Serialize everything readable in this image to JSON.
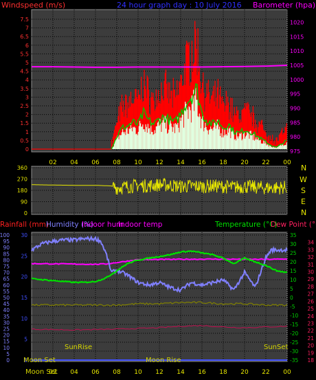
{
  "header": {
    "windspeed_label": "Windspeed (m/s)",
    "title": "24 hour graph day : 10 July 2016",
    "barometer_label": "Barometer (hpa)"
  },
  "legend_bottom": {
    "rainfall": "Rainfall (mm)",
    "humidity": "Humidity (%)",
    "indoor_hum": "Indoor hum",
    "indoor_temp": "Indoor temp",
    "temperature": "Temperature (°C)",
    "dew_point": "Dew Point (°C)"
  },
  "compass": [
    "N",
    "W",
    "S",
    "E",
    "N"
  ],
  "events": {
    "sunrise": "SunRise",
    "sunset": "SunSet",
    "moonset_left": "Moon Set",
    "moonset_axis": "Moon Set",
    "moonrise": "Moon Rise"
  },
  "colors": {
    "wind_gust": "#ff0000",
    "wind_avg": "#00c800",
    "wind_fill": "#e0ffe0",
    "barometer": "#ff00ff",
    "direction": "#e6e600",
    "humidity": "#8080ff",
    "temperature": "#00e000",
    "indoor_temp": "#ff00ff",
    "indoor_hum": "#808000",
    "dew_point": "#c01050",
    "rainfall": "#4050ff",
    "title": "#3030ff",
    "wind_axis": "#ff3030",
    "baro_axis": "#ff00ff",
    "axis_hum": "#8080ff",
    "axis_temp": "#00d000",
    "axis_dew": "#ff2060"
  },
  "chart_data": [
    {
      "type": "line",
      "name": "wind-barometer",
      "x_ticks": [
        "02",
        "04",
        "06",
        "08",
        "10",
        "12",
        "14",
        "16",
        "18",
        "20",
        "22",
        "00"
      ],
      "y_left_ticks": [
        "0",
        "0.5",
        "1",
        "1.5",
        "2",
        "2.5",
        "3",
        "3.5",
        "4",
        "4.5",
        "5",
        "5.5",
        "6",
        "6.5",
        "7",
        "7.5"
      ],
      "y_right_ticks": [
        "975",
        "980",
        "985",
        "990",
        "995",
        "1000",
        "1005",
        "1010",
        "1015",
        "1020"
      ],
      "ylim_left": [
        0,
        7.5
      ],
      "ylim_right": [
        975,
        1023
      ],
      "xlim": [
        0,
        24
      ],
      "grid": true,
      "series": [
        {
          "name": "Barometer (hpa)",
          "x": [
            0,
            2,
            4,
            6,
            8,
            10,
            12,
            14,
            16,
            18,
            20,
            22,
            24
          ],
          "values": [
            1004.5,
            1004.5,
            1004.4,
            1004.3,
            1004.3,
            1004.4,
            1004.4,
            1004.4,
            1004.4,
            1004.5,
            1004.6,
            1004.7,
            1005.0
          ]
        },
        {
          "name": "Windspeed (m/s)",
          "x": [
            7.5,
            8,
            8.5,
            9,
            9.5,
            10,
            10.5,
            11,
            11.5,
            12,
            12.5,
            13,
            13.5,
            14,
            14.5,
            15,
            15.5,
            16,
            16.5,
            17,
            17.5,
            18,
            18.5,
            19,
            19.5,
            20,
            20.5,
            21,
            21.5,
            22,
            22.5,
            23,
            23.5,
            24
          ],
          "values": [
            0,
            0.7,
            1.2,
            1.3,
            1.5,
            1.4,
            2.0,
            1.6,
            1.4,
            1.7,
            1.8,
            1.6,
            1.5,
            2.0,
            2.6,
            3.0,
            3.4,
            2.0,
            1.6,
            1.4,
            1.6,
            1.2,
            1.4,
            1.0,
            0.9,
            1.1,
            1.0,
            0.8,
            0.6,
            0.4,
            0.2,
            0.1,
            0.3,
            0.5
          ]
        }
      ]
    },
    {
      "type": "scatter",
      "name": "wind-direction",
      "y_ticks": [
        "360",
        "270",
        "180",
        "90",
        "0"
      ],
      "ylim": [
        0,
        360
      ],
      "xlim": [
        0,
        24
      ],
      "series": [
        {
          "name": "Direction",
          "x": [
            0,
            2,
            4,
            6,
            7.5,
            8,
            9,
            10,
            11,
            12,
            13,
            14,
            15,
            16,
            17,
            18,
            19,
            20,
            21,
            22,
            23,
            24
          ],
          "values": [
            225,
            222,
            220,
            220,
            215,
            200,
            210,
            220,
            215,
            225,
            220,
            210,
            215,
            210,
            215,
            210,
            205,
            210,
            205,
            200,
            200,
            205
          ]
        }
      ]
    },
    {
      "type": "line",
      "name": "temperature-humidity",
      "y_left_ticks": [
        "0",
        "5",
        "10",
        "15",
        "20",
        "25",
        "30",
        "35",
        "40",
        "45",
        "50",
        "55",
        "60",
        "65",
        "70",
        "75",
        "80",
        "85",
        "90",
        "95",
        "100"
      ],
      "y_right_ticks": [
        "-35",
        "-30",
        "-25",
        "-20",
        "-15",
        "-10",
        "-5",
        "0",
        "5",
        "10",
        "15",
        "20",
        "25",
        "30",
        "35"
      ],
      "y_far_right_ticks": [
        "18",
        "19",
        "20",
        "21",
        "22",
        "23",
        "24",
        "25",
        "26",
        "27",
        "28",
        "29",
        "30",
        "31",
        "32",
        "33",
        "34"
      ],
      "rain_ticks": [
        "0",
        "5",
        "10",
        "15",
        "20",
        "25",
        "30"
      ],
      "ylim_humidity": [
        0,
        100
      ],
      "ylim_temperature": [
        -35,
        35
      ],
      "ylim_dewpoint": [
        18,
        35
      ],
      "xlim": [
        0,
        24
      ],
      "series": [
        {
          "name": "Humidity (%)",
          "x": [
            0,
            1,
            2,
            3,
            4,
            5,
            6,
            6.5,
            7,
            7.5,
            8,
            9,
            10,
            11,
            12,
            13,
            14,
            15,
            16,
            17,
            18,
            19,
            20,
            21,
            22,
            22.5,
            23,
            24
          ],
          "values": [
            88,
            93,
            95,
            96,
            96,
            97,
            97,
            95,
            85,
            70,
            72,
            68,
            62,
            60,
            62,
            58,
            56,
            62,
            60,
            62,
            64,
            56,
            70,
            58,
            82,
            88,
            88,
            88
          ]
        },
        {
          "name": "Temperature (°C)",
          "x": [
            0,
            1,
            2,
            3,
            4,
            5,
            6,
            7,
            8,
            9,
            10,
            11,
            12,
            13,
            14,
            15,
            16,
            17,
            18,
            19,
            20,
            21,
            22,
            23,
            24
          ],
          "values": [
            10.5,
            10,
            9.5,
            9,
            8.5,
            8.5,
            9,
            11,
            15,
            19,
            21,
            22,
            23,
            24,
            25.5,
            26,
            25,
            24,
            22,
            19,
            22,
            20,
            18,
            15,
            14
          ]
        },
        {
          "name": "Indoor temp",
          "x": [
            0,
            6,
            7,
            8,
            10,
            12,
            14,
            16,
            18,
            20,
            22,
            24
          ],
          "values": [
            19,
            18.6,
            18.8,
            19.6,
            21.2,
            21.3,
            21.4,
            21.5,
            21.5,
            21.4,
            21.4,
            21.5
          ]
        },
        {
          "name": "Indoor hum",
          "x": [
            0,
            6,
            8,
            10,
            12,
            14,
            16,
            18,
            20,
            22,
            24
          ],
          "values": [
            44,
            44,
            44,
            45,
            45,
            46,
            46,
            45,
            45,
            44,
            44
          ]
        },
        {
          "name": "Dew Point (°C)",
          "x": [
            0,
            4,
            8,
            10,
            12,
            14,
            16,
            18,
            20,
            22,
            24
          ],
          "values": [
            22.2,
            22.1,
            22.2,
            22.3,
            22.4,
            22.6,
            22.7,
            22.5,
            22.4,
            22.5,
            22.6
          ]
        },
        {
          "name": "Rainfall (mm)",
          "x": [
            0,
            24
          ],
          "values": [
            0,
            0
          ]
        }
      ]
    }
  ]
}
